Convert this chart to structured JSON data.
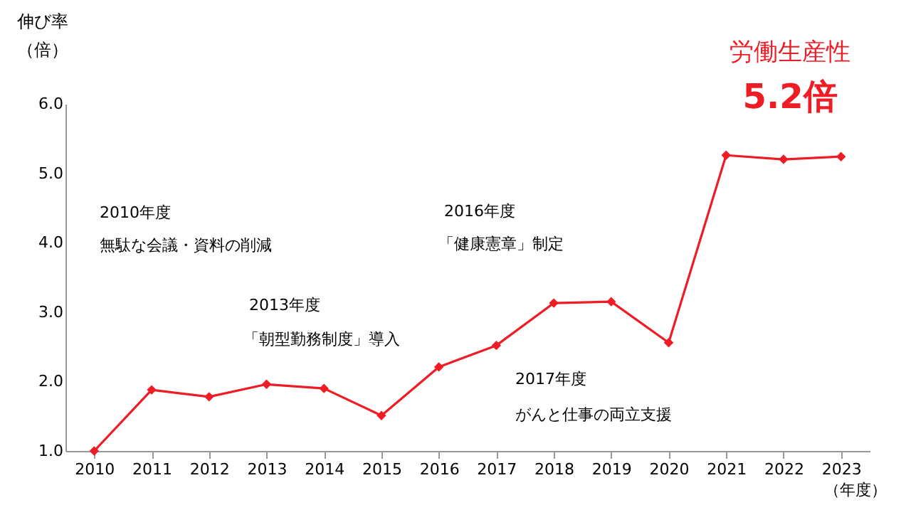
{
  "chart_data": {
    "type": "line",
    "ylabel": "伸び率",
    "xlabel": "（年度）",
    "categories": [
      "2010",
      "2011",
      "2012",
      "2013",
      "2014",
      "2015",
      "2016",
      "2017",
      "2018",
      "2019",
      "2020",
      "2021",
      "2022",
      "2023"
    ],
    "series": [
      {
        "color": "#ee1c25",
        "values": [
          1.0,
          1.88,
          1.78,
          1.96,
          1.9,
          1.51,
          2.21,
          2.52,
          3.13,
          3.15,
          2.56,
          5.26,
          5.2,
          5.24
        ]
      }
    ],
    "ylim": [
      1,
      6
    ],
    "yticks": [
      {
        "value": 1,
        "label": "1.0"
      },
      {
        "value": 2,
        "label": "2.0"
      },
      {
        "value": 3,
        "label": "3.0"
      },
      {
        "value": 4,
        "label": "4.0"
      },
      {
        "value": 5,
        "label": "5.0"
      },
      {
        "value": 6,
        "label": "6.0"
      }
    ],
    "marker": "diamond",
    "line_style": "solid",
    "grid": false,
    "annotations": [
      "2010年度",
      "無駄な会議・資料の削減",
      "2013年度",
      "「朝型勤務制度」導入",
      "2016年度",
      "「健康憲章」制定",
      "2017年度",
      "がんと仕事の両立支援",
      "労働生産性",
      "5.2倍",
      "（倍）"
    ]
  }
}
